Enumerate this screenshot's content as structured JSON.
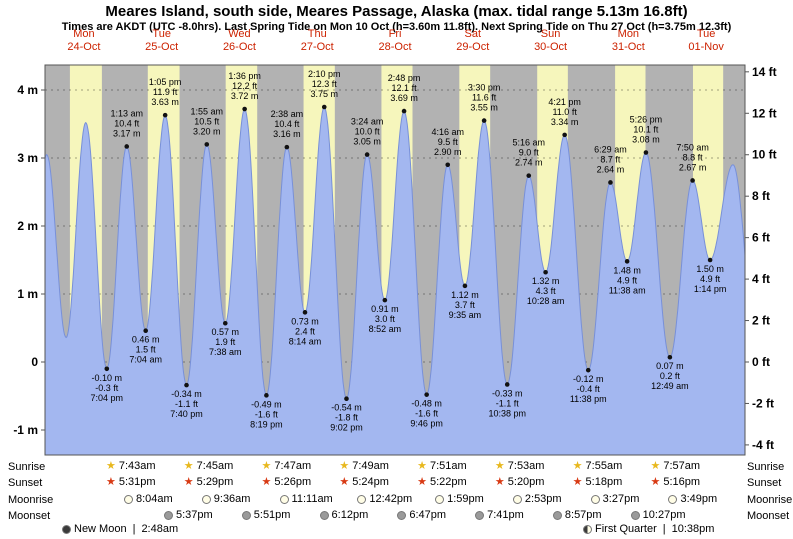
{
  "header": {
    "title": "Meares Island, south side, Meares Passage, Alaska (max. tidal range 5.13m 16.8ft)",
    "subtitle": "Times are AKDT (UTC -8.0hrs). Last Spring Tide on Mon 10 Oct (h=3.60m 11.8ft). Next Spring Tide on Thu 27 Oct (h=3.75m 12.3ft)"
  },
  "days": [
    {
      "weekday": "Mon",
      "date": "24-Oct"
    },
    {
      "weekday": "Tue",
      "date": "25-Oct"
    },
    {
      "weekday": "Wed",
      "date": "26-Oct"
    },
    {
      "weekday": "Thu",
      "date": "27-Oct"
    },
    {
      "weekday": "Fri",
      "date": "28-Oct"
    },
    {
      "weekday": "Sat",
      "date": "29-Oct"
    },
    {
      "weekday": "Sun",
      "date": "30-Oct"
    },
    {
      "weekday": "Mon",
      "date": "31-Oct"
    },
    {
      "weekday": "Tue",
      "date": "01-Nov"
    }
  ],
  "axes": {
    "left": [
      {
        "label": "4 m",
        "m": 4
      },
      {
        "label": "3 m",
        "m": 3
      },
      {
        "label": "2 m",
        "m": 2
      },
      {
        "label": "1 m",
        "m": 1
      },
      {
        "label": "0",
        "m": 0
      },
      {
        "label": "-1 m",
        "m": -1
      }
    ],
    "right": [
      {
        "label": "14 ft",
        "ft": 14
      },
      {
        "label": "12 ft",
        "ft": 12
      },
      {
        "label": "10 ft",
        "ft": 10
      },
      {
        "label": "8 ft",
        "ft": 8
      },
      {
        "label": "6 ft",
        "ft": 6
      },
      {
        "label": "4 ft",
        "ft": 4
      },
      {
        "label": "2 ft",
        "ft": 2
      },
      {
        "label": "0 ft",
        "ft": 0
      },
      {
        "label": "-2 ft",
        "ft": -2
      },
      {
        "label": "-4 ft",
        "ft": -4
      }
    ]
  },
  "chart_data": {
    "type": "area",
    "x_range": {
      "start_day": "Mon 24-Oct",
      "end_day": "Tue 01-Nov",
      "days": 9
    },
    "ylim_m": [
      -1.37,
      4.37
    ],
    "unit_left": "m",
    "unit_right": "ft",
    "colors": {
      "day_band": "#f6f6bc",
      "night_band": "#b2b2b2",
      "water_fill": "#a3b7f0",
      "water_edge": "#7890d8",
      "header_red": "#cc2200",
      "text": "#000000"
    },
    "tide_events": [
      {
        "day": "Mon 24-Oct",
        "type": "low",
        "time": "7:04 pm",
        "height_m": -0.1,
        "height_ft": -0.3,
        "m_label": "-0.10 m",
        "ft_label": "-0.3 ft",
        "t_hours": 19.07
      },
      {
        "day": "Tue 25-Oct",
        "type": "high",
        "time": "1:13 am",
        "height_m": 3.17,
        "height_ft": 10.4,
        "m_label": "3.17 m",
        "ft_label": "10.4 ft",
        "t_hours": 25.22
      },
      {
        "day": "Tue 25-Oct",
        "type": "low",
        "time": "7:04 am",
        "height_m": 0.46,
        "height_ft": 1.5,
        "m_label": "0.46 m",
        "ft_label": "1.5 ft",
        "t_hours": 31.07
      },
      {
        "day": "Tue 25-Oct",
        "type": "high",
        "time": "1:05 pm",
        "height_m": 3.63,
        "height_ft": 11.9,
        "m_label": "3.63 m",
        "ft_label": "11.9 ft",
        "t_hours": 37.08
      },
      {
        "day": "Tue 25-Oct",
        "type": "low",
        "time": "7:40 pm",
        "height_m": -0.34,
        "height_ft": -1.1,
        "m_label": "-0.34 m",
        "ft_label": "-1.1 ft",
        "t_hours": 43.67
      },
      {
        "day": "Wed 26-Oct",
        "type": "high",
        "time": "1:55 am",
        "height_m": 3.2,
        "height_ft": 10.5,
        "m_label": "3.20 m",
        "ft_label": "10.5 ft",
        "t_hours": 49.92
      },
      {
        "day": "Wed 26-Oct",
        "type": "low",
        "time": "7:38 am",
        "height_m": 0.57,
        "height_ft": 1.9,
        "m_label": "0.57 m",
        "ft_label": "1.9 ft",
        "t_hours": 55.63
      },
      {
        "day": "Wed 26-Oct",
        "type": "high",
        "time": "1:36 pm",
        "height_m": 3.72,
        "height_ft": 12.2,
        "m_label": "3.72 m",
        "ft_label": "12.2 ft",
        "t_hours": 61.6
      },
      {
        "day": "Wed 26-Oct",
        "type": "low",
        "time": "8:19 pm",
        "height_m": -0.49,
        "height_ft": -1.6,
        "m_label": "-0.49 m",
        "ft_label": "-1.6 ft",
        "t_hours": 68.32
      },
      {
        "day": "Thu 27-Oct",
        "type": "high",
        "time": "2:38 am",
        "height_m": 3.16,
        "height_ft": 10.4,
        "m_label": "3.16 m",
        "ft_label": "10.4 ft",
        "t_hours": 74.63
      },
      {
        "day": "Thu 27-Oct",
        "type": "low",
        "time": "8:14 am",
        "height_m": 0.73,
        "height_ft": 2.4,
        "m_label": "0.73 m",
        "ft_label": "2.4 ft",
        "t_hours": 80.23
      },
      {
        "day": "Thu 27-Oct",
        "type": "high",
        "time": "2:10 pm",
        "height_m": 3.75,
        "height_ft": 12.3,
        "m_label": "3.75 m",
        "ft_label": "12.3 ft",
        "t_hours": 86.17
      },
      {
        "day": "Thu 27-Oct",
        "type": "low",
        "time": "9:02 pm",
        "height_m": -0.54,
        "height_ft": -1.8,
        "m_label": "-0.54 m",
        "ft_label": "-1.8 ft",
        "t_hours": 93.03
      },
      {
        "day": "Fri 28-Oct",
        "type": "high",
        "time": "3:24 am",
        "height_m": 3.05,
        "height_ft": 10.0,
        "m_label": "3.05 m",
        "ft_label": "10.0 ft",
        "t_hours": 99.4
      },
      {
        "day": "Fri 28-Oct",
        "type": "low",
        "time": "8:52 am",
        "height_m": 0.91,
        "height_ft": 3.0,
        "m_label": "0.91 m",
        "ft_label": "3.0 ft",
        "t_hours": 104.87
      },
      {
        "day": "Fri 28-Oct",
        "type": "high",
        "time": "2:48 pm",
        "height_m": 3.69,
        "height_ft": 12.1,
        "m_label": "3.69 m",
        "ft_label": "12.1 ft",
        "t_hours": 110.8
      },
      {
        "day": "Fri 28-Oct",
        "type": "low",
        "time": "9:46 pm",
        "height_m": -0.48,
        "height_ft": -1.6,
        "m_label": "-0.48 m",
        "ft_label": "-1.6 ft",
        "t_hours": 117.77
      },
      {
        "day": "Sat 29-Oct",
        "type": "high",
        "time": "4:16 am",
        "height_m": 2.9,
        "height_ft": 9.5,
        "m_label": "2.90 m",
        "ft_label": "9.5 ft",
        "t_hours": 124.27
      },
      {
        "day": "Sat 29-Oct",
        "type": "low",
        "time": "9:35 am",
        "height_m": 1.12,
        "height_ft": 3.7,
        "m_label": "1.12 m",
        "ft_label": "3.7 ft",
        "t_hours": 129.58
      },
      {
        "day": "Sat 29-Oct",
        "type": "high",
        "time": "3:30 pm",
        "height_m": 3.55,
        "height_ft": 11.6,
        "m_label": "3.55 m",
        "ft_label": "11.6 ft",
        "t_hours": 135.5
      },
      {
        "day": "Sat 29-Oct",
        "type": "low",
        "time": "10:38 pm",
        "height_m": -0.33,
        "height_ft": -1.1,
        "m_label": "-0.33 m",
        "ft_label": "-1.1 ft",
        "t_hours": 142.63
      },
      {
        "day": "Sun 30-Oct",
        "type": "high",
        "time": "5:16 am",
        "height_m": 2.74,
        "height_ft": 9.0,
        "m_label": "2.74 m",
        "ft_label": "9.0 ft",
        "t_hours": 149.27
      },
      {
        "day": "Sun 30-Oct",
        "type": "low",
        "time": "10:28 am",
        "height_m": 1.32,
        "height_ft": 4.3,
        "m_label": "1.32 m",
        "ft_label": "4.3 ft",
        "t_hours": 154.47
      },
      {
        "day": "Sun 30-Oct",
        "type": "high",
        "time": "4:21 pm",
        "height_m": 3.34,
        "height_ft": 11.0,
        "m_label": "3.34 m",
        "ft_label": "11.0 ft",
        "t_hours": 160.35
      },
      {
        "day": "Sun 30-Oct",
        "type": "low",
        "time": "11:38 pm",
        "height_m": -0.12,
        "height_ft": -0.4,
        "m_label": "-0.12 m",
        "ft_label": "-0.4 ft",
        "t_hours": 167.63
      },
      {
        "day": "Mon 31-Oct",
        "type": "high",
        "time": "6:29 am",
        "height_m": 2.64,
        "height_ft": 8.7,
        "m_label": "2.64 m",
        "ft_label": "8.7 ft",
        "t_hours": 174.48
      },
      {
        "day": "Mon 31-Oct",
        "type": "low",
        "time": "11:38 am",
        "height_m": 1.48,
        "height_ft": 4.9,
        "m_label": "1.48 m",
        "ft_label": "4.9 ft",
        "t_hours": 179.63
      },
      {
        "day": "Mon 31-Oct",
        "type": "high",
        "time": "5:26 pm",
        "height_m": 3.08,
        "height_ft": 10.1,
        "m_label": "3.08 m",
        "ft_label": "10.1 ft",
        "t_hours": 185.43
      },
      {
        "day": "Tue 01-Nov",
        "type": "low",
        "time": "12:49 am",
        "height_m": 0.07,
        "height_ft": 0.2,
        "m_label": "0.07 m",
        "ft_label": "0.2 ft",
        "t_hours": 192.82
      },
      {
        "day": "Tue 01-Nov",
        "type": "high",
        "time": "7:50 am",
        "height_m": 2.67,
        "height_ft": 8.8,
        "m_label": "2.67 m",
        "ft_label": "8.8 ft",
        "t_hours": 199.83
      },
      {
        "day": "Tue 01-Nov",
        "type": "low",
        "time": "1:14 pm",
        "height_m": 1.5,
        "height_ft": 4.9,
        "m_label": "1.50 m",
        "ft_label": "4.9 ft",
        "t_hours": 205.23
      }
    ],
    "curve_anchors": [
      {
        "t_hours": -5.5,
        "height_m": -0.15
      },
      {
        "t_hours": 0.52,
        "height_m": 3.05
      },
      {
        "t_hours": 6.52,
        "height_m": 0.36
      },
      {
        "t_hours": 12.58,
        "height_m": 3.52
      },
      {
        "t_hours": 212.3,
        "height_m": 2.9
      },
      {
        "t_hours": 219.5,
        "height_m": 0.35
      }
    ]
  },
  "astro": {
    "row_labels": {
      "sunrise": "Sunrise",
      "sunset": "Sunset",
      "moonrise": "Moonrise",
      "moonset": "Moonset"
    },
    "sunrise": [
      "7:43am",
      "7:45am",
      "7:47am",
      "7:49am",
      "7:51am",
      "7:53am",
      "7:55am",
      "7:57am"
    ],
    "sunset": [
      "5:31pm",
      "5:29pm",
      "5:26pm",
      "5:24pm",
      "5:22pm",
      "5:20pm",
      "5:18pm",
      "5:16pm"
    ],
    "moonrise": [
      "8:04am",
      "9:36am",
      "11:11am",
      "12:42pm",
      "1:59pm",
      "2:53pm",
      "3:27pm",
      "3:49pm"
    ],
    "moonset": [
      "5:37pm",
      "5:51pm",
      "6:12pm",
      "6:47pm",
      "7:41pm",
      "8:57pm",
      "10:27pm"
    ],
    "phase_separator": "|",
    "phases": [
      {
        "name": "New Moon",
        "time": "2:48am"
      },
      {
        "name": "First Quarter",
        "time": "10:38pm"
      }
    ]
  }
}
